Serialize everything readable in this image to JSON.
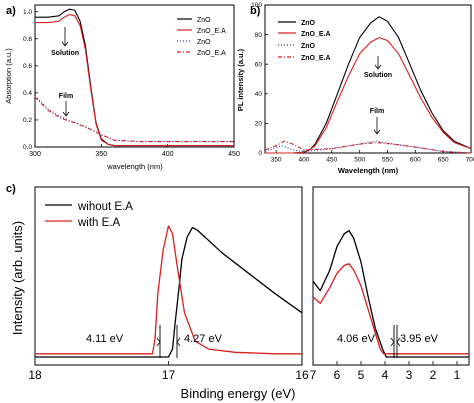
{
  "chart_data": [
    {
      "panel_label": "a)",
      "type": "line",
      "xlabel": "wavelength (nm)",
      "ylabel": "Absorption (a.u.)",
      "xlim": [
        300,
        450
      ],
      "ylim": [
        0,
        1.05
      ],
      "xticks": [
        300,
        350,
        400,
        450
      ],
      "yticks": [
        0.0,
        0.2,
        0.4,
        0.6,
        0.8,
        1.0
      ],
      "ytick_labels": [
        "0.0",
        "0.2",
        "0.4",
        "0.6",
        "0.8",
        "1.0"
      ],
      "legend": [
        "ZnO",
        "ZnO_E.A",
        "ZnO",
        "ZnO_E.A"
      ],
      "legend_position": "top-right",
      "annotations": [
        "Solution",
        "Film"
      ],
      "series": [
        {
          "name": "ZnO",
          "style": "solid",
          "color": "#000000",
          "x": [
            300,
            310,
            318,
            322,
            326,
            330,
            334,
            338,
            342,
            346,
            350,
            355,
            360,
            380,
            400,
            420,
            450
          ],
          "y": [
            0.96,
            0.96,
            0.97,
            1.0,
            1.02,
            1.01,
            0.93,
            0.75,
            0.45,
            0.18,
            0.06,
            0.02,
            0.01,
            0.01,
            0.01,
            0.01,
            0.01
          ]
        },
        {
          "name": "ZnO_E.A",
          "style": "solid",
          "color": "#d81e1e",
          "x": [
            300,
            310,
            318,
            322,
            326,
            330,
            334,
            338,
            342,
            346,
            350,
            355,
            360,
            380,
            400,
            420,
            450
          ],
          "y": [
            0.92,
            0.92,
            0.93,
            0.96,
            0.98,
            0.97,
            0.9,
            0.72,
            0.43,
            0.17,
            0.05,
            0.02,
            0.01,
            0.01,
            0.01,
            0.01,
            0.01
          ]
        },
        {
          "name": "ZnO",
          "style": "dotted",
          "color": "#1f3fbf",
          "x": [
            300,
            310,
            320,
            330,
            340,
            350,
            355,
            360,
            380,
            400,
            420,
            450
          ],
          "y": [
            0.38,
            0.28,
            0.22,
            0.18,
            0.14,
            0.09,
            0.07,
            0.05,
            0.04,
            0.04,
            0.04,
            0.04
          ]
        },
        {
          "name": "ZnO_E.A",
          "style": "dashdot",
          "color": "#d81e1e",
          "x": [
            300,
            310,
            320,
            330,
            340,
            350,
            355,
            360,
            380,
            400,
            420,
            450
          ],
          "y": [
            0.37,
            0.27,
            0.21,
            0.18,
            0.14,
            0.09,
            0.07,
            0.05,
            0.04,
            0.04,
            0.04,
            0.04
          ]
        }
      ]
    },
    {
      "panel_label": "b)",
      "type": "line",
      "xlabel": "Wavelength (nm)",
      "ylabel": "PL intensity (a.u.)",
      "xlim": [
        330,
        700
      ],
      "ylim": [
        0,
        100
      ],
      "xticks": [
        350,
        400,
        450,
        500,
        550,
        600,
        650,
        700
      ],
      "yticks": [
        0,
        20,
        40,
        60,
        80,
        100
      ],
      "legend": [
        "ZnO",
        "ZnO_E.A",
        "ZnO",
        "ZnO_E.A"
      ],
      "legend_position": "top-right",
      "annotations": [
        "Solution",
        "Film"
      ],
      "series": [
        {
          "name": "ZnO",
          "style": "solid",
          "color": "#000000",
          "x": [
            330,
            380,
            400,
            410,
            420,
            440,
            460,
            480,
            500,
            520,
            535,
            550,
            570,
            590,
            610,
            630,
            650,
            670,
            700
          ],
          "y": [
            0,
            0,
            0.5,
            2,
            6,
            20,
            40,
            60,
            78,
            88,
            92,
            89,
            78,
            60,
            42,
            27,
            15,
            8,
            3
          ]
        },
        {
          "name": "ZnO_E.A",
          "style": "solid",
          "color": "#d81e1e",
          "x": [
            330,
            380,
            400,
            410,
            420,
            440,
            460,
            480,
            500,
            520,
            535,
            550,
            570,
            590,
            610,
            630,
            650,
            670,
            700
          ],
          "y": [
            0,
            0,
            0.5,
            2,
            5,
            17,
            35,
            52,
            67,
            75,
            78,
            76,
            67,
            52,
            37,
            24,
            14,
            7,
            3
          ]
        },
        {
          "name": "ZnO",
          "style": "dotted",
          "color": "#1f3fbf",
          "x": [
            330,
            360,
            380,
            400,
            450,
            500,
            530,
            560,
            600,
            650,
            700
          ],
          "y": [
            1,
            5,
            2,
            1,
            3,
            6,
            8,
            6,
            4,
            1,
            0
          ]
        },
        {
          "name": "ZnO_E.A",
          "style": "dashdot",
          "color": "#d81e1e",
          "x": [
            330,
            350,
            365,
            380,
            400,
            450,
            500,
            530,
            560,
            600,
            650,
            700
          ],
          "y": [
            2,
            5,
            8,
            6,
            2,
            3,
            6,
            7,
            6,
            4,
            1,
            0
          ]
        }
      ]
    },
    {
      "panel_label": "c)",
      "type": "line",
      "xlabel": "Binding energy (eV)",
      "ylabel": "Intensity (arb. units)",
      "legend": [
        "wihout E.A",
        "with E.A"
      ],
      "legend_position": "top-left",
      "left": {
        "xlim": [
          18,
          16
        ],
        "xticks": [
          18,
          17,
          16
        ],
        "annotations": [
          "4.11 eV",
          "4.27 eV"
        ],
        "series": [
          {
            "name": "wihout E.A",
            "color": "#000000",
            "x": [
              18,
              17.2,
              17.0,
              16.97,
              16.95,
              16.92,
              16.9,
              16.86,
              16.82,
              16.78,
              16.6,
              16.4,
              16.2,
              16.0
            ],
            "y": [
              0.0,
              0.0,
              0.0,
              0.05,
              0.22,
              0.45,
              0.62,
              0.76,
              0.82,
              0.8,
              0.66,
              0.53,
              0.4,
              0.28
            ]
          },
          {
            "name": "with E.A",
            "color": "#d81e1e",
            "x": [
              18,
              17.2,
              17.12,
              17.1,
              17.08,
              17.04,
              17.0,
              16.97,
              16.93,
              16.88,
              16.8,
              16.7,
              16.5,
              16.2,
              16.0
            ],
            "y": [
              0.02,
              0.02,
              0.02,
              0.12,
              0.4,
              0.68,
              0.83,
              0.78,
              0.55,
              0.28,
              0.1,
              0.05,
              0.03,
              0.02,
              0.02
            ]
          }
        ]
      },
      "right": {
        "xlim": [
          7,
          0.5
        ],
        "xticks": [
          7,
          6,
          5,
          4,
          3,
          2,
          1
        ],
        "xtick_labels": [
          "7",
          "6",
          "5",
          "4",
          "3",
          "2",
          "1"
        ],
        "annotations": [
          "4.06 eV",
          "3.95 eV"
        ],
        "series": [
          {
            "name": "wihout E.A",
            "color": "#000000",
            "x": [
              7.0,
              6.7,
              6.3,
              6.0,
              5.7,
              5.5,
              5.3,
              5.0,
              4.7,
              4.4,
              4.1,
              3.95,
              3.5,
              2.0,
              0.5
            ],
            "y": [
              0.48,
              0.42,
              0.55,
              0.7,
              0.78,
              0.8,
              0.75,
              0.6,
              0.38,
              0.18,
              0.05,
              0.0,
              0.0,
              0.0,
              0.0
            ]
          },
          {
            "name": "with E.A",
            "color": "#d81e1e",
            "x": [
              7.0,
              6.7,
              6.3,
              6.0,
              5.7,
              5.5,
              5.3,
              5.0,
              4.7,
              4.4,
              4.2,
              4.06,
              3.5,
              2.0,
              0.5
            ],
            "y": [
              0.38,
              0.34,
              0.44,
              0.53,
              0.58,
              0.59,
              0.55,
              0.45,
              0.3,
              0.15,
              0.05,
              0.02,
              0.02,
              0.02,
              0.02
            ]
          }
        ]
      }
    }
  ]
}
